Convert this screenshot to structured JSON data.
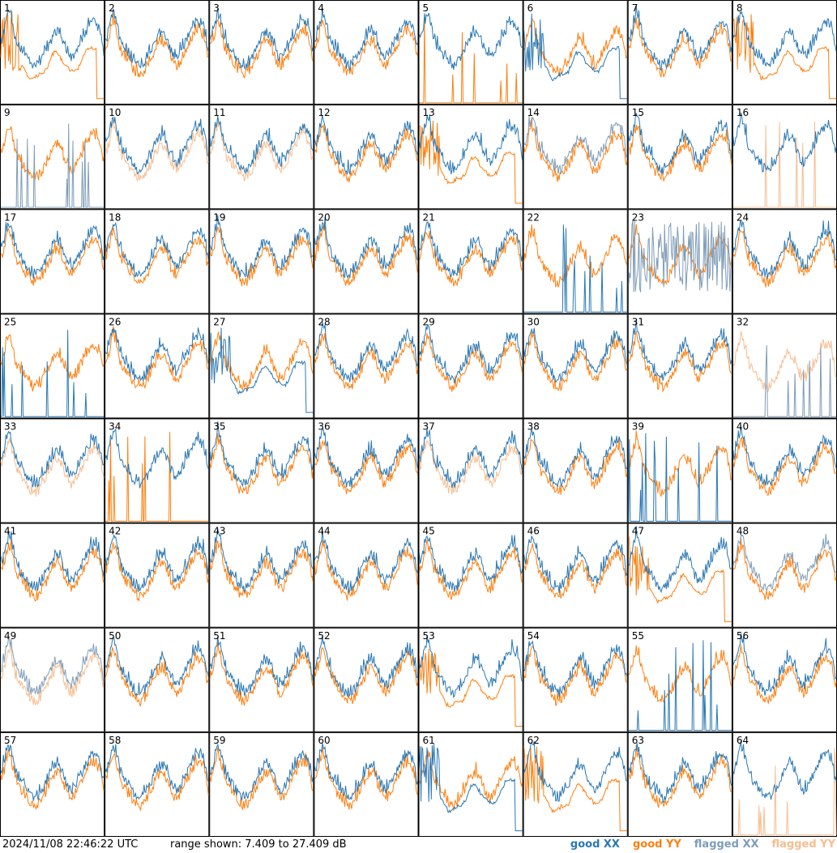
{
  "footer": {
    "timestamp": "2024/11/08 22:46:22 UTC",
    "range_text": "range shown: 7.409 to 27.409 dB"
  },
  "legend": [
    {
      "label": "good XX",
      "color": "#2a78b4"
    },
    {
      "label": "good YY",
      "color": "#ff7f0e"
    },
    {
      "label": "flagged XX",
      "color": "#7e9cb8"
    },
    {
      "label": "flagged YY",
      "color": "#f7bd8f"
    }
  ],
  "chart_data": {
    "type": "line",
    "title": "",
    "ylim": [
      7.409,
      27.409
    ],
    "grid": {
      "rows": 8,
      "cols": 8
    },
    "panel_labels": [
      "1",
      "2",
      "3",
      "4",
      "5",
      "6",
      "7",
      "8",
      "9",
      "10",
      "11",
      "12",
      "13",
      "14",
      "15",
      "16",
      "17",
      "18",
      "19",
      "20",
      "21",
      "22",
      "23",
      "24",
      "25",
      "26",
      "27",
      "28",
      "29",
      "30",
      "31",
      "32",
      "33",
      "34",
      "35",
      "36",
      "37",
      "38",
      "39",
      "40",
      "41",
      "42",
      "43",
      "44",
      "45",
      "46",
      "47",
      "48",
      "49",
      "50",
      "51",
      "52",
      "53",
      "54",
      "55",
      "56",
      "57",
      "58",
      "59",
      "60",
      "61",
      "62",
      "63",
      "64"
    ],
    "panels": [
      {
        "id": 1,
        "xx": "good",
        "yy": "good",
        "yy_profile": "drop"
      },
      {
        "id": 2,
        "xx": "good",
        "yy": "good"
      },
      {
        "id": 3,
        "xx": "good",
        "yy": "good"
      },
      {
        "id": 4,
        "xx": "good",
        "yy": "good"
      },
      {
        "id": 5,
        "xx": "good",
        "yy": "good",
        "yy_profile": "sparse"
      },
      {
        "id": 6,
        "xx": "good",
        "yy": "good",
        "xx_profile": "drop"
      },
      {
        "id": 7,
        "xx": "good",
        "yy": "good"
      },
      {
        "id": 8,
        "xx": "good",
        "yy": "good",
        "yy_profile": "drop"
      },
      {
        "id": 9,
        "xx": "flagged",
        "yy": "good",
        "xx_profile": "sparse"
      },
      {
        "id": 10,
        "xx": "good",
        "yy": "flagged"
      },
      {
        "id": 11,
        "xx": "good",
        "yy": "flagged"
      },
      {
        "id": 12,
        "xx": "good",
        "yy": "good"
      },
      {
        "id": 13,
        "xx": "good",
        "yy": "good",
        "yy_profile": "drop"
      },
      {
        "id": 14,
        "xx": "flagged",
        "yy": "good"
      },
      {
        "id": 15,
        "xx": "good",
        "yy": "good"
      },
      {
        "id": 16,
        "xx": "good",
        "yy": "flagged",
        "yy_profile": "sparse"
      },
      {
        "id": 17,
        "xx": "good",
        "yy": "good"
      },
      {
        "id": 18,
        "xx": "good",
        "yy": "good"
      },
      {
        "id": 19,
        "xx": "good",
        "yy": "good"
      },
      {
        "id": 20,
        "xx": "good",
        "yy": "good"
      },
      {
        "id": 21,
        "xx": "good",
        "yy": "good"
      },
      {
        "id": 22,
        "xx": "good",
        "yy": "good",
        "xx_profile": "sparse"
      },
      {
        "id": 23,
        "xx": "flagged",
        "yy": "good",
        "xx_profile": "noisy"
      },
      {
        "id": 24,
        "xx": "good",
        "yy": "good"
      },
      {
        "id": 25,
        "xx": "good",
        "yy": "good",
        "xx_profile": "sparse"
      },
      {
        "id": 26,
        "xx": "good",
        "yy": "good"
      },
      {
        "id": 27,
        "xx": "good",
        "yy": "good",
        "xx_profile": "drop"
      },
      {
        "id": 28,
        "xx": "good",
        "yy": "good"
      },
      {
        "id": 29,
        "xx": "good",
        "yy": "good"
      },
      {
        "id": 30,
        "xx": "good",
        "yy": "good"
      },
      {
        "id": 31,
        "xx": "good",
        "yy": "good"
      },
      {
        "id": 32,
        "xx": "flagged",
        "yy": "flagged",
        "xx_profile": "sparse"
      },
      {
        "id": 33,
        "xx": "good",
        "yy": "flagged"
      },
      {
        "id": 34,
        "xx": "good",
        "yy": "good",
        "yy_profile": "sparse"
      },
      {
        "id": 35,
        "xx": "good",
        "yy": "good"
      },
      {
        "id": 36,
        "xx": "good",
        "yy": "good"
      },
      {
        "id": 37,
        "xx": "good",
        "yy": "flagged"
      },
      {
        "id": 38,
        "xx": "good",
        "yy": "good"
      },
      {
        "id": 39,
        "xx": "good",
        "yy": "good",
        "xx_profile": "sparse"
      },
      {
        "id": 40,
        "xx": "good",
        "yy": "good"
      },
      {
        "id": 41,
        "xx": "good",
        "yy": "good"
      },
      {
        "id": 42,
        "xx": "good",
        "yy": "good"
      },
      {
        "id": 43,
        "xx": "good",
        "yy": "good"
      },
      {
        "id": 44,
        "xx": "good",
        "yy": "good"
      },
      {
        "id": 45,
        "xx": "good",
        "yy": "good"
      },
      {
        "id": 46,
        "xx": "good",
        "yy": "good"
      },
      {
        "id": 47,
        "xx": "good",
        "yy": "good",
        "yy_profile": "drop"
      },
      {
        "id": 48,
        "xx": "flagged",
        "yy": "good"
      },
      {
        "id": 49,
        "xx": "flagged",
        "yy": "flagged"
      },
      {
        "id": 50,
        "xx": "good",
        "yy": "good"
      },
      {
        "id": 51,
        "xx": "good",
        "yy": "good"
      },
      {
        "id": 52,
        "xx": "good",
        "yy": "good"
      },
      {
        "id": 53,
        "xx": "good",
        "yy": "good",
        "yy_profile": "drop"
      },
      {
        "id": 54,
        "xx": "good",
        "yy": "good"
      },
      {
        "id": 55,
        "xx": "good",
        "yy": "good",
        "xx_profile": "sparse"
      },
      {
        "id": 56,
        "xx": "good",
        "yy": "good"
      },
      {
        "id": 57,
        "xx": "good",
        "yy": "good"
      },
      {
        "id": 58,
        "xx": "good",
        "yy": "good"
      },
      {
        "id": 59,
        "xx": "good",
        "yy": "good"
      },
      {
        "id": 60,
        "xx": "good",
        "yy": "good"
      },
      {
        "id": 61,
        "xx": "good",
        "yy": "good",
        "xx_profile": "drop"
      },
      {
        "id": 62,
        "xx": "good",
        "yy": "good",
        "yy_profile": "drop"
      },
      {
        "id": 63,
        "xx": "good",
        "yy": "good"
      },
      {
        "id": 64,
        "xx": "good",
        "yy": "flagged",
        "yy_profile": "sparse"
      }
    ]
  }
}
